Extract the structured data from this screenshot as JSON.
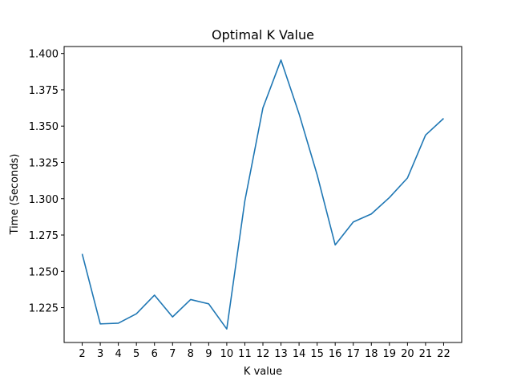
{
  "chart_data": {
    "type": "line",
    "title": "Optimal K Value",
    "xlabel": "K value",
    "ylabel": "Time (Seconds)",
    "x": [
      2,
      3,
      4,
      5,
      6,
      7,
      8,
      9,
      10,
      11,
      12,
      13,
      14,
      15,
      16,
      17,
      18,
      19,
      20,
      21,
      22
    ],
    "y": [
      1.262,
      1.2138,
      1.2143,
      1.2208,
      1.2336,
      1.2186,
      1.2306,
      1.2276,
      1.2103,
      1.2985,
      1.3625,
      1.3955,
      1.3585,
      1.3165,
      1.2682,
      1.284,
      1.2895,
      1.3008,
      1.3143,
      1.3438,
      1.3553
    ],
    "x_ticks": [
      "2",
      "3",
      "4",
      "5",
      "6",
      "7",
      "8",
      "9",
      "10",
      "11",
      "12",
      "13",
      "14",
      "15",
      "16",
      "17",
      "18",
      "19",
      "20",
      "21",
      "22"
    ],
    "y_ticks": [
      "1.225",
      "1.250",
      "1.275",
      "1.300",
      "1.325",
      "1.350",
      "1.375",
      "1.400"
    ],
    "xlim": [
      1.0,
      23.0
    ],
    "ylim": [
      1.201,
      1.4048
    ],
    "grid": false,
    "legend": "none",
    "line_color": "#1f77b4"
  }
}
